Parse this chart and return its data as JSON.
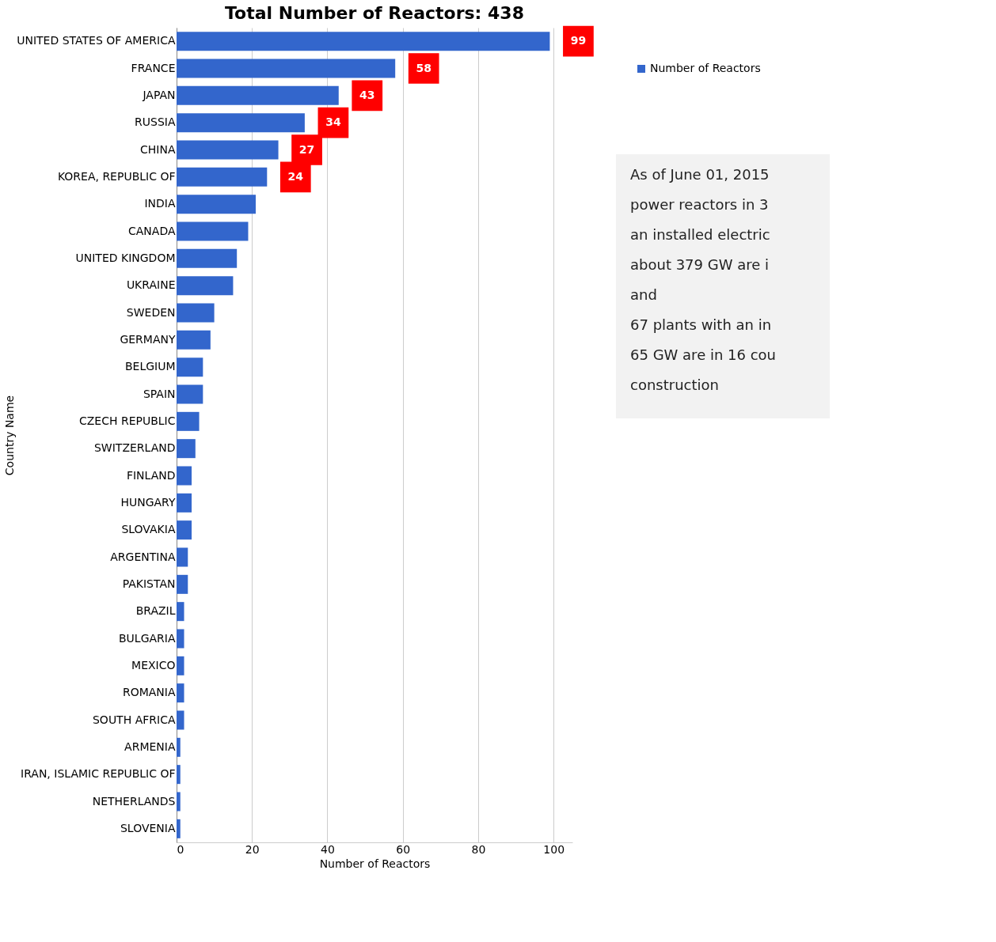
{
  "chart_data": {
    "type": "bar",
    "orientation": "horizontal",
    "title": "Total Number of Reactors: 438",
    "xlabel": "Number of Reactors",
    "ylabel": "Country Name",
    "categories": [
      "UNITED STATES OF AMERICA",
      "FRANCE",
      "JAPAN",
      "RUSSIA",
      "CHINA",
      "KOREA, REPUBLIC OF",
      "INDIA",
      "CANADA",
      "UNITED KINGDOM",
      "UKRAINE",
      "SWEDEN",
      "GERMANY",
      "BELGIUM",
      "SPAIN",
      "CZECH REPUBLIC",
      "SWITZERLAND",
      "FINLAND",
      "HUNGARY",
      "SLOVAKIA",
      "ARGENTINA",
      "PAKISTAN",
      "BRAZIL",
      "BULGARIA",
      "MEXICO",
      "ROMANIA",
      "SOUTH AFRICA",
      "ARMENIA",
      "IRAN, ISLAMIC REPUBLIC OF",
      "NETHERLANDS",
      "SLOVENIA"
    ],
    "series": [
      {
        "name": "Number of Reactors",
        "color": "#3366cc",
        "values": [
          99,
          58,
          43,
          34,
          27,
          24,
          21,
          19,
          16,
          15,
          10,
          9,
          7,
          7,
          6,
          5,
          4,
          4,
          4,
          3,
          3,
          2,
          2,
          2,
          2,
          2,
          1,
          1,
          1,
          1
        ],
        "value_labels": [
          "99",
          "58",
          "43",
          "34",
          "27",
          "24",
          null,
          null,
          null,
          null,
          null,
          null,
          null,
          null,
          null,
          null,
          null,
          null,
          null,
          null,
          null,
          null,
          null,
          null,
          null,
          null,
          null,
          null,
          null,
          null
        ]
      }
    ],
    "xlim": [
      0,
      105
    ],
    "xticks": [
      0,
      20,
      40,
      60,
      80,
      100
    ],
    "grid": "x",
    "legend": "top right",
    "annotations": [
      "As of June 01, 2015",
      "power reactors  in 3",
      "an installed electric",
      "about 379 GW are i",
      "and",
      "67 plants with an in",
      "65 GW are in 16 cou",
      "construction"
    ]
  }
}
